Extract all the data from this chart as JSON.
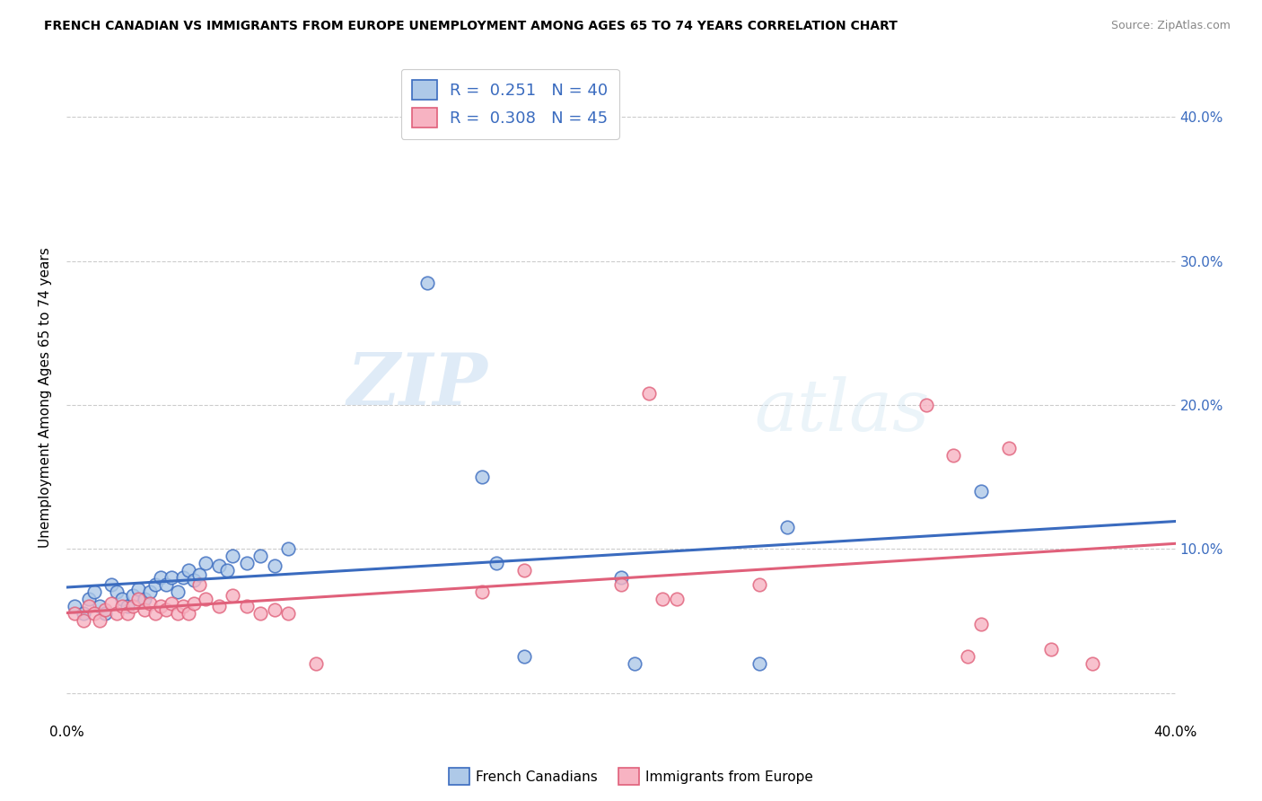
{
  "title": "FRENCH CANADIAN VS IMMIGRANTS FROM EUROPE UNEMPLOYMENT AMONG AGES 65 TO 74 YEARS CORRELATION CHART",
  "source": "Source: ZipAtlas.com",
  "ylabel": "Unemployment Among Ages 65 to 74 years",
  "xlim": [
    0.0,
    0.4
  ],
  "ylim": [
    0.0,
    0.42
  ],
  "blue_R": 0.251,
  "blue_N": 40,
  "pink_R": 0.308,
  "pink_N": 45,
  "blue_color": "#aec9e8",
  "pink_color": "#f7b3c2",
  "blue_line_color": "#3a6bbf",
  "pink_line_color": "#e0607a",
  "blue_x": [
    0.003,
    0.006,
    0.008,
    0.01,
    0.012,
    0.014,
    0.016,
    0.018,
    0.02,
    0.022,
    0.024,
    0.026,
    0.028,
    0.03,
    0.032,
    0.034,
    0.036,
    0.038,
    0.04,
    0.042,
    0.044,
    0.046,
    0.048,
    0.05,
    0.055,
    0.058,
    0.06,
    0.065,
    0.07,
    0.075,
    0.08,
    0.13,
    0.15,
    0.155,
    0.165,
    0.2,
    0.205,
    0.25,
    0.26,
    0.33
  ],
  "blue_y": [
    0.06,
    0.055,
    0.065,
    0.07,
    0.06,
    0.055,
    0.075,
    0.07,
    0.065,
    0.06,
    0.068,
    0.072,
    0.065,
    0.07,
    0.075,
    0.08,
    0.075,
    0.08,
    0.07,
    0.08,
    0.085,
    0.078,
    0.082,
    0.09,
    0.088,
    0.085,
    0.095,
    0.09,
    0.095,
    0.088,
    0.1,
    0.285,
    0.15,
    0.09,
    0.025,
    0.08,
    0.02,
    0.02,
    0.115,
    0.14
  ],
  "pink_x": [
    0.003,
    0.006,
    0.008,
    0.01,
    0.012,
    0.014,
    0.016,
    0.018,
    0.02,
    0.022,
    0.024,
    0.026,
    0.028,
    0.03,
    0.032,
    0.034,
    0.036,
    0.038,
    0.04,
    0.042,
    0.044,
    0.046,
    0.048,
    0.05,
    0.055,
    0.06,
    0.065,
    0.07,
    0.075,
    0.08,
    0.09,
    0.15,
    0.165,
    0.2,
    0.21,
    0.215,
    0.22,
    0.25,
    0.31,
    0.32,
    0.325,
    0.33,
    0.34,
    0.355,
    0.37
  ],
  "pink_y": [
    0.055,
    0.05,
    0.06,
    0.055,
    0.05,
    0.058,
    0.062,
    0.055,
    0.06,
    0.055,
    0.06,
    0.065,
    0.058,
    0.062,
    0.055,
    0.06,
    0.058,
    0.062,
    0.055,
    0.06,
    0.055,
    0.062,
    0.075,
    0.065,
    0.06,
    0.068,
    0.06,
    0.055,
    0.058,
    0.055,
    0.02,
    0.07,
    0.085,
    0.075,
    0.208,
    0.065,
    0.065,
    0.075,
    0.2,
    0.165,
    0.025,
    0.048,
    0.17,
    0.03,
    0.02
  ]
}
